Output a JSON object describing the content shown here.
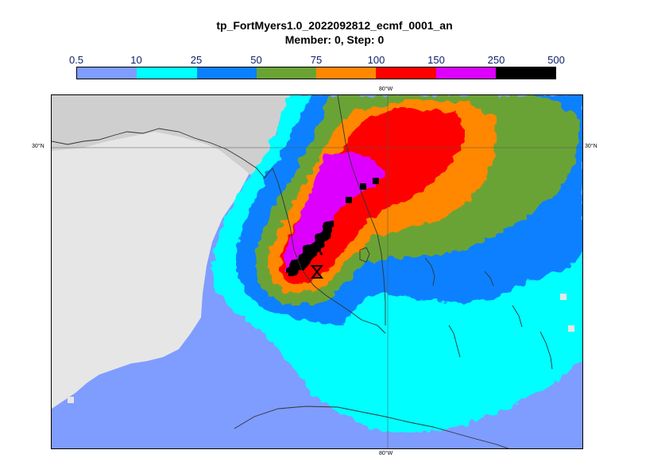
{
  "title_line1": "tp_FortMyers1.0_2022092812_ecmf_0001_an",
  "title_line2": "Member: 0, Step: 0",
  "legend": {
    "labels": [
      "0.5",
      "10",
      "25",
      "50",
      "75",
      "100",
      "150",
      "250",
      "500"
    ],
    "colors": [
      "#7f9cff",
      "#00ffff",
      "#0a80ff",
      "#6aa334",
      "#ff8800",
      "#ff0000",
      "#dd00ff",
      "#000000"
    ]
  },
  "graticule": {
    "top_lon": "80°W",
    "bottom_lon": "80°W",
    "left_lat": "30°N",
    "right_lat": "30°N"
  },
  "map": {
    "land_color": "#e6e6e6",
    "land_north_color": "#cfcfcf",
    "ocean_base_color": "#7f9cff"
  }
}
